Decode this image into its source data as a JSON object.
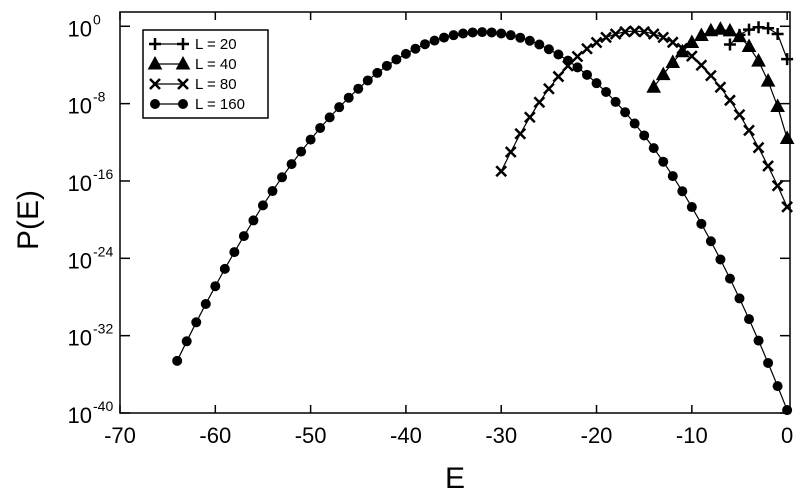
{
  "chart_data": {
    "type": "line",
    "x_label": "E",
    "y_label": "P(E)",
    "log_y": true,
    "grid": false,
    "legend_position": "top-left",
    "xlim": [
      -70,
      0.3
    ],
    "ylim": [
      1e-40,
      30
    ],
    "xticks": [
      -70,
      -60,
      -50,
      -40,
      -30,
      -20,
      -10,
      0
    ],
    "yticks": [
      {
        "value": 1,
        "label": "10",
        "exponent": "0"
      },
      {
        "value": 1e-08,
        "label": "10",
        "exponent": "-8"
      },
      {
        "value": 1e-16,
        "label": "10",
        "exponent": "-16"
      },
      {
        "value": 1e-24,
        "label": "10",
        "exponent": "-24"
      },
      {
        "value": 1e-32,
        "label": "10",
        "exponent": "-32"
      },
      {
        "value": 1e-40,
        "label": "10",
        "exponent": "-40"
      }
    ],
    "series": [
      {
        "name": "L = 20",
        "color": "#000000",
        "marker": "plus",
        "x": [
          -6,
          -5,
          -4,
          -3,
          -2,
          -1,
          0
        ],
        "values": [
          0.013,
          0.13,
          0.45,
          0.79,
          0.63,
          0.16,
          0.0004
        ]
      },
      {
        "name": "L = 40",
        "color": "#000000",
        "marker": "triangle",
        "x": [
          -14,
          -13,
          -12,
          -11,
          -10,
          -9,
          -8,
          -7,
          -6,
          -5,
          -4,
          -3,
          -2,
          -1,
          0
        ],
        "values": [
          5e-07,
          1e-05,
          0.00018,
          0.0023,
          0.021,
          0.11,
          0.34,
          0.5,
          0.33,
          0.085,
          0.0081,
          0.00025,
          2.1e-06,
          5e-09,
          2.5e-12
        ]
      },
      {
        "name": "L = 80",
        "color": "#000000",
        "marker": "cross",
        "x": [
          -30,
          -29,
          -28,
          -27,
          -26,
          -25,
          -24,
          -23,
          -22,
          -21,
          -20,
          -19,
          -18,
          -17,
          -16,
          -15,
          -14,
          -13,
          -12,
          -11,
          -10,
          -9,
          -8,
          -7,
          -6,
          -5,
          -4,
          -3,
          -2,
          -1,
          0
        ],
        "values": [
          1e-15,
          1e-13,
          7.6e-12,
          3.9e-10,
          1.4e-08,
          3.5e-07,
          6.3e-06,
          8.1e-05,
          0.00074,
          0.0047,
          0.021,
          0.071,
          0.16,
          0.27,
          0.32,
          0.27,
          0.16,
          0.071,
          0.022,
          0.005,
          0.00081,
          9.3e-05,
          7.9e-06,
          4.9e-07,
          2.2e-08,
          7.1e-10,
          1.7e-11,
          2.8e-13,
          3.5e-15,
          3.2e-17,
          2.1e-19
        ]
      },
      {
        "name": "L = 160",
        "color": "#000000",
        "marker": "circle",
        "x": [
          -64,
          -63,
          -62,
          -61,
          -60,
          -59,
          -58,
          -57,
          -56,
          -55,
          -54,
          -53,
          -52,
          -51,
          -50,
          -49,
          -48,
          -47,
          -46,
          -45,
          -44,
          -43,
          -42,
          -41,
          -40,
          -39,
          -38,
          -37,
          -36,
          -35,
          -34,
          -33,
          -32,
          -31,
          -30,
          -29,
          -28,
          -27,
          -26,
          -25,
          -24,
          -23,
          -22,
          -21,
          -20,
          -19,
          -18,
          -17,
          -16,
          -15,
          -14,
          -13,
          -12,
          -11,
          -10,
          -9,
          -8,
          -7,
          -6,
          -5,
          -4,
          -3,
          -2,
          -1,
          0
        ],
        "values": [
          2.5e-35,
          2.6e-33,
          2.4e-31,
          1.9e-29,
          1.3e-27,
          8.1e-26,
          4.4e-24,
          2e-22,
          8.3e-21,
          3e-19,
          9.1e-18,
          2.4e-16,
          5.5e-15,
          1.1e-13,
          1.9e-12,
          3e-11,
          3.8e-10,
          4.3e-09,
          4.1e-08,
          3.5e-07,
          2.5e-06,
          1.5e-05,
          8.1e-05,
          0.00037,
          0.0014,
          0.0048,
          0.014,
          0.033,
          0.068,
          0.12,
          0.18,
          0.23,
          0.25,
          0.23,
          0.18,
          0.12,
          0.066,
          0.032,
          0.013,
          0.0042,
          0.0012,
          0.00028,
          5.6e-05,
          9.5e-06,
          1.3e-06,
          1.6e-07,
          1.5e-08,
          1.3e-09,
          8.7e-11,
          5.1e-12,
          2.5e-13,
          9.8e-15,
          3.2e-16,
          8.7e-18,
          2e-19,
          3.7e-21,
          5.8e-23,
          7.6e-25,
          7.9e-27,
          7.1e-29,
          5.1e-31,
          3.1e-33,
          1.5e-35,
          6e-38,
          2e-40
        ]
      }
    ]
  }
}
